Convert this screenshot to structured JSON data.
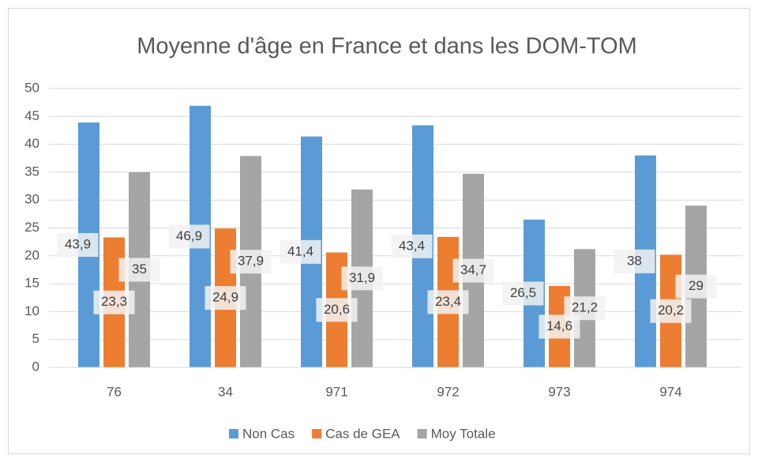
{
  "chart_data": {
    "type": "bar",
    "title": "Moyenne d'âge en France et dans les DOM-TOM",
    "categories": [
      "76",
      "34",
      "971",
      "972",
      "973",
      "974"
    ],
    "series": [
      {
        "name": "Non Cas",
        "color": "#5b9bd5",
        "values": [
          43.9,
          46.9,
          41.4,
          43.4,
          26.5,
          38
        ],
        "value_labels": [
          "43,9",
          "46,9",
          "41,4",
          "43,4",
          "26,5",
          "38"
        ]
      },
      {
        "name": "Cas de GEA",
        "color": "#ed7d31",
        "values": [
          23.3,
          24.9,
          20.6,
          23.4,
          14.6,
          20.2
        ],
        "value_labels": [
          "23,3",
          "24,9",
          "20,6",
          "23,4",
          "14,6",
          "20,2"
        ]
      },
      {
        "name": "Moy Totale",
        "color": "#a5a5a5",
        "values": [
          35,
          37.9,
          31.9,
          34.7,
          21.2,
          29
        ],
        "value_labels": [
          "35",
          "37,9",
          "31,9",
          "34,7",
          "21,2",
          "29"
        ]
      }
    ],
    "ylim": [
      0,
      50
    ],
    "yticks": [
      0,
      5,
      10,
      15,
      20,
      25,
      30,
      35,
      40,
      45,
      50
    ],
    "grid": true,
    "legend": "bottom"
  }
}
